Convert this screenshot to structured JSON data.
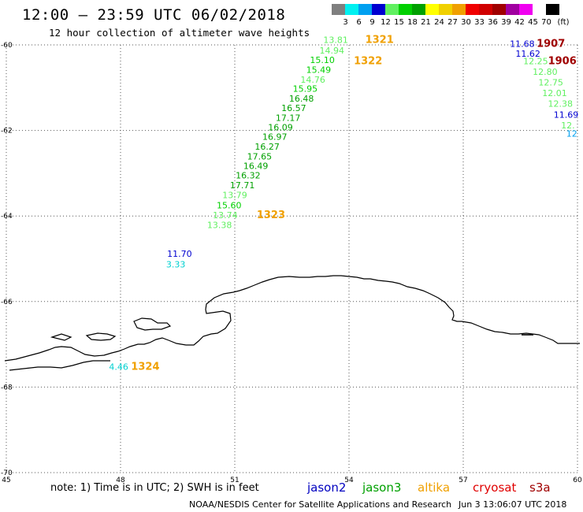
{
  "title": "12:00 – 23:59 UTC 06/02/2018",
  "subtitle": "12 hour collection of altimeter wave heights",
  "legend": {
    "unit": "(ft)",
    "swatches": [
      {
        "color": "#7f7f7f",
        "label": "3"
      },
      {
        "color": "#00f0f0",
        "label": "6"
      },
      {
        "color": "#00a0f0",
        "label": "9"
      },
      {
        "color": "#0000d0",
        "label": "12"
      },
      {
        "color": "#60f060",
        "label": "15"
      },
      {
        "color": "#00d000",
        "label": "18"
      },
      {
        "color": "#00a000",
        "label": "21"
      },
      {
        "color": "#ffff00",
        "label": "24"
      },
      {
        "color": "#f0d000",
        "label": "27"
      },
      {
        "color": "#f0a000",
        "label": "30"
      },
      {
        "color": "#f00000",
        "label": "33"
      },
      {
        "color": "#d00000",
        "label": "36"
      },
      {
        "color": "#a00000",
        "label": "39"
      },
      {
        "color": "#a000a0",
        "label": "42"
      },
      {
        "color": "#f000f0",
        "label": "45"
      },
      {
        "color": "#ffffff",
        "label": "70"
      },
      {
        "color": "#000000",
        "label": ""
      }
    ]
  },
  "axes": {
    "lon_ticks": [
      "45",
      "48",
      "51",
      "54",
      "57",
      "60"
    ],
    "lat_ticks": [
      "-60",
      "-62",
      "-64",
      "-66",
      "-68",
      "-70"
    ]
  },
  "observations": [
    {
      "text": "13.81",
      "lon": 53.65,
      "lat": -59.95,
      "color": "#60f060"
    },
    {
      "text": "14.94",
      "lon": 53.55,
      "lat": -60.2,
      "color": "#60f060"
    },
    {
      "text": "15.10",
      "lon": 53.3,
      "lat": -60.42,
      "color": "#00d000"
    },
    {
      "text": "15.49",
      "lon": 53.2,
      "lat": -60.65,
      "color": "#00d000"
    },
    {
      "text": "14.76",
      "lon": 53.05,
      "lat": -60.88,
      "color": "#60f060"
    },
    {
      "text": "15.95",
      "lon": 52.85,
      "lat": -61.1,
      "color": "#00d000"
    },
    {
      "text": "16.48",
      "lon": 52.75,
      "lat": -61.33,
      "color": "#00a000"
    },
    {
      "text": "16.57",
      "lon": 52.55,
      "lat": -61.55,
      "color": "#00a000"
    },
    {
      "text": "17.17",
      "lon": 52.4,
      "lat": -61.78,
      "color": "#00a000"
    },
    {
      "text": "16.09",
      "lon": 52.2,
      "lat": -62.0,
      "color": "#00a000"
    },
    {
      "text": "16.97",
      "lon": 52.05,
      "lat": -62.22,
      "color": "#00a000"
    },
    {
      "text": "16.27",
      "lon": 51.85,
      "lat": -62.45,
      "color": "#00a000"
    },
    {
      "text": "17.65",
      "lon": 51.65,
      "lat": -62.68,
      "color": "#00a000"
    },
    {
      "text": "16.49",
      "lon": 51.55,
      "lat": -62.9,
      "color": "#00a000"
    },
    {
      "text": "16.32",
      "lon": 51.35,
      "lat": -63.12,
      "color": "#00a000"
    },
    {
      "text": "17.71",
      "lon": 51.2,
      "lat": -63.35,
      "color": "#00a000"
    },
    {
      "text": "13.79",
      "lon": 51.0,
      "lat": -63.58,
      "color": "#60f060"
    },
    {
      "text": "15.60",
      "lon": 50.85,
      "lat": -63.82,
      "color": "#00d000"
    },
    {
      "text": "13.74",
      "lon": 50.75,
      "lat": -64.05,
      "color": "#60f060"
    },
    {
      "text": "13.38",
      "lon": 50.6,
      "lat": -64.28,
      "color": "#60f060"
    },
    {
      "text": "11.70",
      "lon": 49.55,
      "lat": -64.95,
      "color": "#0000d0"
    },
    {
      "text": "3.33",
      "lon": 49.45,
      "lat": -65.2,
      "color": "#00d0d0"
    },
    {
      "text": "4.46",
      "lon": 47.95,
      "lat": -67.6,
      "color": "#00d0d0"
    },
    {
      "text": "11.68",
      "lon": 58.55,
      "lat": -60.05,
      "color": "#0000d0"
    },
    {
      "text": "11.62",
      "lon": 58.7,
      "lat": -60.28,
      "color": "#0000d0"
    },
    {
      "text": "12.25",
      "lon": 58.9,
      "lat": -60.45,
      "color": "#60f060"
    },
    {
      "text": "12.80",
      "lon": 59.15,
      "lat": -60.7,
      "color": "#60f060"
    },
    {
      "text": "12.75",
      "lon": 59.3,
      "lat": -60.95,
      "color": "#60f060"
    },
    {
      "text": "12.01",
      "lon": 59.4,
      "lat": -61.2,
      "color": "#60f060"
    },
    {
      "text": "12.38",
      "lon": 59.55,
      "lat": -61.45,
      "color": "#60f060"
    },
    {
      "text": "11.69",
      "lon": 59.7,
      "lat": -61.7,
      "color": "#0000d0"
    },
    {
      "text": "12.",
      "lon": 59.75,
      "lat": -61.95,
      "color": "#60f060"
    },
    {
      "text": "12",
      "lon": 59.85,
      "lat": -62.15,
      "color": "#00a0f0"
    }
  ],
  "times": [
    {
      "text": "1321",
      "lon": 54.8,
      "lat": -59.95,
      "color": "#f0a000"
    },
    {
      "text": "1322",
      "lon": 54.5,
      "lat": -60.45,
      "color": "#f0a000"
    },
    {
      "text": "1323",
      "lon": 51.95,
      "lat": -64.05,
      "color": "#f0a000"
    },
    {
      "text": "1324",
      "lon": 48.65,
      "lat": -67.6,
      "color": "#f0a000"
    },
    {
      "text": "1907",
      "lon": 59.3,
      "lat": -60.05,
      "color": "#a00000"
    },
    {
      "text": "1906",
      "lon": 59.6,
      "lat": -60.45,
      "color": "#a00000"
    }
  ],
  "note": "note: 1) Time is in UTC; 2) SWH is in feet",
  "satellites": [
    {
      "name": "jason2",
      "color": "#0000c0"
    },
    {
      "name": "jason3",
      "color": "#00a000"
    },
    {
      "name": "altika",
      "color": "#f0a000"
    },
    {
      "name": "cryosat",
      "color": "#e00000"
    },
    {
      "name": "s3a",
      "color": "#a00000"
    }
  ],
  "credit": "NOAA/NESDIS Center for Satellite Applications and Research",
  "timestamp": "Jun  3 13:06:07 UTC 2018"
}
